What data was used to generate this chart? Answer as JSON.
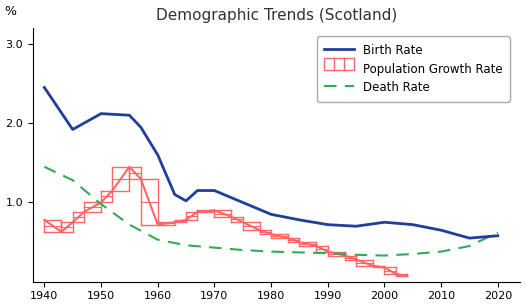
{
  "title": "Demographic Trends (Scotland)",
  "title_color": "#333333",
  "ylabel": "%",
  "ylim": [
    0,
    3.2
  ],
  "yticks": [
    1.0,
    2.0,
    3.0
  ],
  "ytick_labels": [
    "1.0",
    "2.0",
    "3.0"
  ],
  "xlim": [
    1938,
    2024
  ],
  "xticks": [
    1940,
    1950,
    1960,
    1970,
    1980,
    1990,
    2000,
    2010,
    2020
  ],
  "birth_rate": {
    "x": [
      1940,
      1945,
      1950,
      1955,
      1957,
      1960,
      1963,
      1965,
      1967,
      1970,
      1975,
      1980,
      1985,
      1990,
      1995,
      2000,
      2005,
      2010,
      2015,
      2020
    ],
    "y": [
      2.45,
      1.92,
      2.12,
      2.1,
      1.95,
      1.6,
      1.1,
      1.02,
      1.15,
      1.15,
      1.0,
      0.85,
      0.78,
      0.72,
      0.7,
      0.75,
      0.72,
      0.65,
      0.55,
      0.58
    ],
    "color": "#1f3f99",
    "linewidth": 2.0,
    "label": "Birth Rate"
  },
  "population_growth_rate": {
    "x": [
      1940,
      1943,
      1945,
      1947,
      1950,
      1952,
      1955,
      1957,
      1960,
      1963,
      1965,
      1967,
      1970,
      1973,
      1975,
      1978,
      1980,
      1983,
      1985,
      1988,
      1990,
      1993,
      1995,
      1998,
      2000,
      2002,
      2004
    ],
    "y": [
      0.78,
      0.63,
      0.75,
      0.88,
      1.0,
      1.15,
      1.45,
      1.3,
      0.72,
      0.75,
      0.78,
      0.88,
      0.9,
      0.82,
      0.75,
      0.65,
      0.6,
      0.55,
      0.5,
      0.45,
      0.38,
      0.33,
      0.28,
      0.2,
      0.18,
      0.1,
      0.07
    ],
    "color": "#ff6666",
    "linewidth": 1.5,
    "label": "Population Growth Rate"
  },
  "death_rate": {
    "x": [
      1940,
      1945,
      1950,
      1955,
      1960,
      1965,
      1970,
      1975,
      1980,
      1985,
      1990,
      1995,
      2000,
      2005,
      2010,
      2015,
      2020
    ],
    "y": [
      1.45,
      1.28,
      0.98,
      0.72,
      0.53,
      0.46,
      0.43,
      0.4,
      0.38,
      0.37,
      0.36,
      0.34,
      0.33,
      0.35,
      0.38,
      0.45,
      0.62
    ],
    "color": "#33aa55",
    "linewidth": 1.5,
    "label": "Death Rate"
  },
  "background_color": "#ffffff",
  "legend_fontsize": 8.5,
  "title_fontsize": 11
}
